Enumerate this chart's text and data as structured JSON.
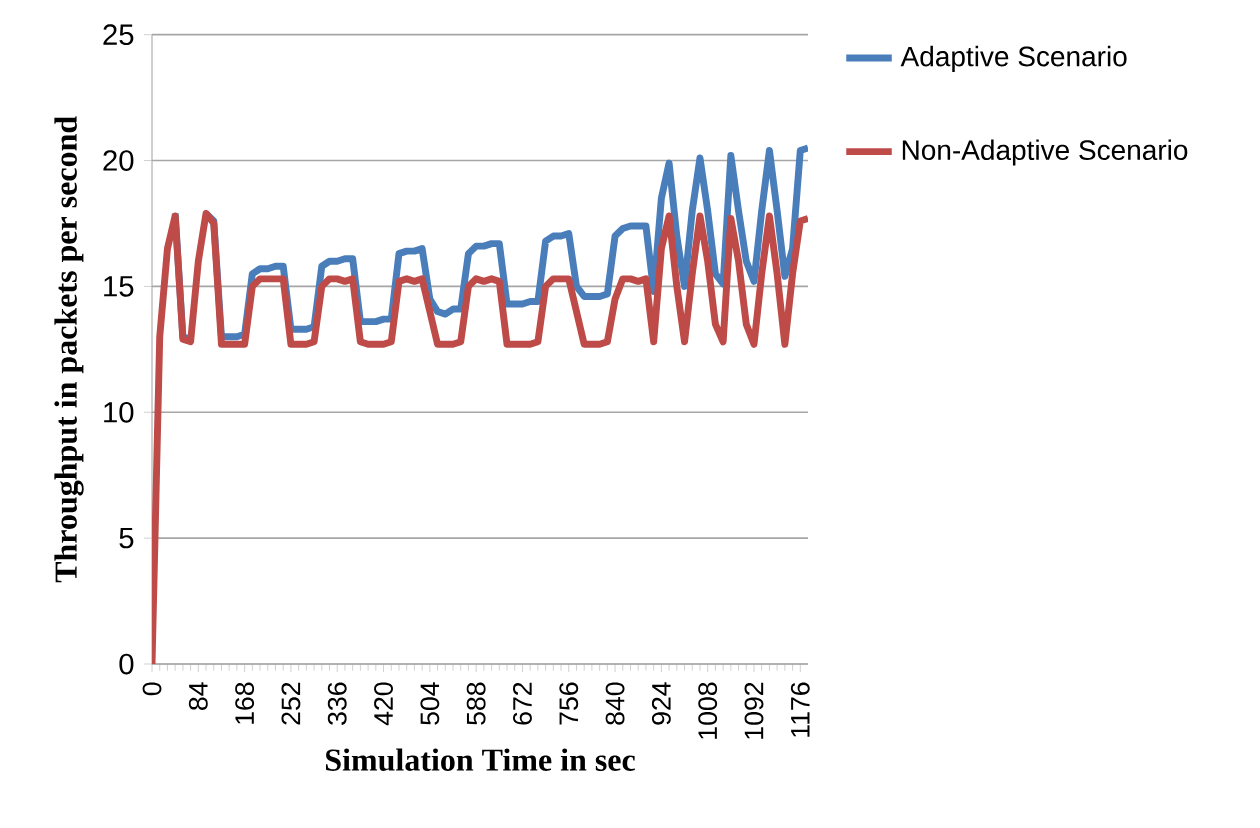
{
  "chart_data": {
    "type": "line",
    "xlabel": "Simulation Time in sec",
    "ylabel": "Throughput in packets per second",
    "x": [
      0,
      14,
      28,
      42,
      56,
      70,
      84,
      98,
      112,
      126,
      140,
      154,
      168,
      182,
      196,
      210,
      224,
      238,
      252,
      266,
      280,
      294,
      308,
      322,
      336,
      350,
      364,
      378,
      392,
      406,
      420,
      434,
      448,
      462,
      476,
      490,
      504,
      518,
      532,
      546,
      560,
      574,
      588,
      602,
      616,
      630,
      644,
      658,
      672,
      686,
      700,
      714,
      728,
      742,
      756,
      770,
      784,
      798,
      812,
      826,
      840,
      854,
      868,
      882,
      896,
      910,
      924,
      938,
      952,
      966,
      980,
      994,
      1008,
      1022,
      1036,
      1050,
      1064,
      1078,
      1092,
      1106,
      1120,
      1134,
      1148,
      1162,
      1176,
      1190
    ],
    "series": [
      {
        "name": "Adaptive Scenario",
        "color": "#4a7ebb",
        "values": [
          null,
          null,
          null,
          17.9,
          13.0,
          12.9,
          null,
          17.9,
          17.6,
          13.0,
          13.0,
          13.0,
          13.1,
          15.5,
          15.7,
          15.7,
          15.8,
          15.8,
          13.3,
          13.3,
          13.3,
          13.4,
          15.8,
          16.0,
          16.0,
          16.1,
          16.1,
          13.6,
          13.6,
          13.6,
          13.7,
          13.7,
          16.3,
          16.4,
          16.4,
          16.5,
          14.5,
          14.0,
          13.9,
          14.1,
          14.1,
          16.3,
          16.6,
          16.6,
          16.7,
          16.7,
          14.3,
          14.3,
          14.3,
          14.4,
          14.4,
          16.8,
          17.0,
          17.0,
          17.1,
          15.0,
          14.6,
          14.6,
          14.6,
          14.7,
          17.0,
          17.3,
          17.4,
          17.4,
          17.4,
          14.8,
          18.5,
          19.9,
          17.0,
          15.0,
          18.0,
          20.1,
          18.0,
          15.5,
          15.1,
          20.2,
          18.0,
          16.0,
          15.2,
          18.0,
          20.4,
          18.0,
          15.4,
          16.5,
          20.4,
          20.5
        ]
      },
      {
        "name": "Non-Adaptive Scenario",
        "color": "#be4b48",
        "values": [
          0,
          13.0,
          16.5,
          17.8,
          12.9,
          12.8,
          16.0,
          17.9,
          17.5,
          12.7,
          12.7,
          12.7,
          12.7,
          15.0,
          15.3,
          15.3,
          15.3,
          15.3,
          12.7,
          12.7,
          12.7,
          12.8,
          15.0,
          15.3,
          15.3,
          15.2,
          15.3,
          12.8,
          12.7,
          12.7,
          12.7,
          12.8,
          15.2,
          15.3,
          15.2,
          15.3,
          14.0,
          12.7,
          12.7,
          12.7,
          12.8,
          15.0,
          15.3,
          15.2,
          15.3,
          15.2,
          12.7,
          12.7,
          12.7,
          12.7,
          12.8,
          15.0,
          15.3,
          15.3,
          15.3,
          14.0,
          12.7,
          12.7,
          12.7,
          12.8,
          14.5,
          15.3,
          15.3,
          15.2,
          15.3,
          12.8,
          16.5,
          17.8,
          15.0,
          12.8,
          15.5,
          17.8,
          16.0,
          13.5,
          12.8,
          17.7,
          16.0,
          13.5,
          12.7,
          15.5,
          17.8,
          15.5,
          12.7,
          15.5,
          17.6,
          17.7
        ]
      }
    ],
    "xlim": [
      0,
      1190
    ],
    "xticks": [
      0,
      84,
      168,
      252,
      336,
      420,
      504,
      588,
      672,
      756,
      840,
      924,
      1008,
      1092,
      1176
    ],
    "ylim": [
      0,
      25
    ],
    "yticks": [
      0,
      5,
      10,
      15,
      20,
      25
    ],
    "grid": "y",
    "legend": "right",
    "marker": "none",
    "line_style": "solid"
  }
}
